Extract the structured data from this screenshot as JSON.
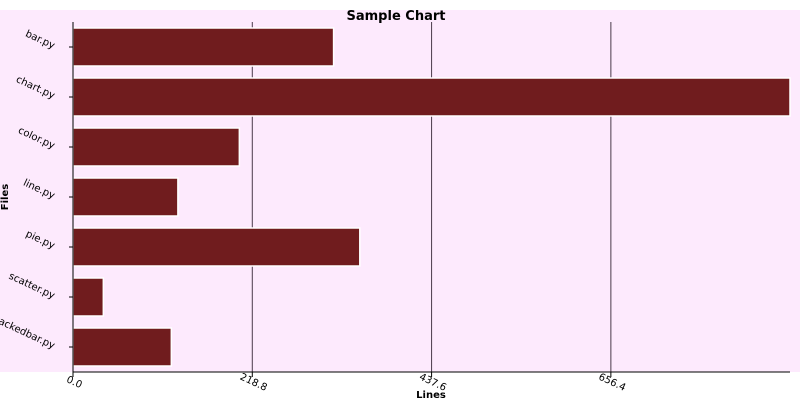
{
  "chart_data": {
    "type": "bar",
    "orientation": "horizontal",
    "title": "Sample Chart",
    "xlabel": "Lines",
    "ylabel": "Files",
    "categories": [
      "bar.py",
      "chart.py",
      "color.py",
      "line.py",
      "pie.py",
      "scatter.py",
      "stackedbar.py"
    ],
    "values": [
      318,
      875,
      203,
      128,
      350,
      37,
      120
    ],
    "x_ticks": [
      "0.0",
      "218.8",
      "437.6",
      "656.4"
    ],
    "xlim": [
      0,
      875
    ],
    "grid": true,
    "colors": {
      "bar_fill": "#701c1e",
      "bar_outline": "#ffffff",
      "plot_background": "#fdeafd",
      "grid": "#4a3a4a",
      "axis": "#000000"
    }
  }
}
